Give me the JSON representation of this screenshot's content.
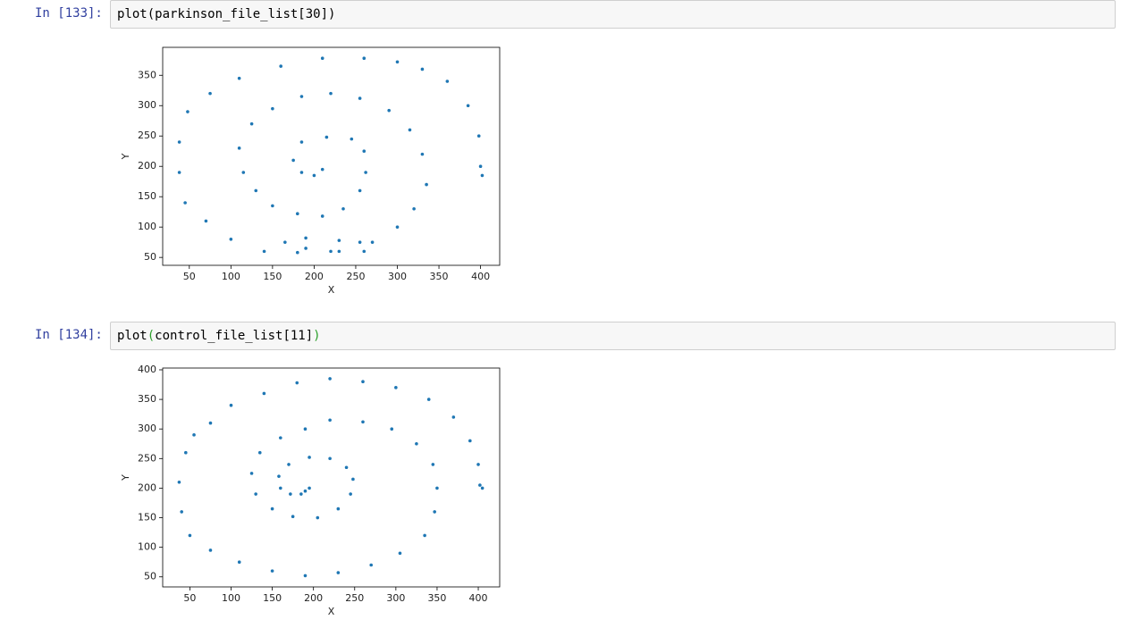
{
  "cells": [
    {
      "prompt": "In [133]:",
      "code": [
        "plot",
        "(",
        "parkinson_file_list[30]",
        ")"
      ]
    },
    {
      "prompt": "In [134]:",
      "code": [
        "plot",
        "(",
        "control_file_list[11]",
        ")"
      ]
    }
  ],
  "chart_data": [
    {
      "type": "scatter",
      "x_label": "X",
      "y_label": "Y",
      "color": "#1f77b4",
      "xlim": [
        18,
        423
      ],
      "ylim": [
        37,
        396
      ],
      "xticks": [
        50,
        100,
        150,
        200,
        250,
        300,
        350,
        400
      ],
      "yticks": [
        50,
        100,
        150,
        200,
        250,
        300,
        350
      ],
      "x": [
        210,
        200,
        185,
        175,
        185,
        215,
        245,
        260,
        262,
        255,
        235,
        210,
        180,
        150,
        130,
        115,
        110,
        125,
        150,
        185,
        220,
        255,
        290,
        315,
        330,
        335,
        320,
        300,
        270,
        230,
        190,
        165,
        190,
        230,
        260,
        255,
        220,
        180,
        140,
        100,
        70,
        45,
        38,
        38,
        48,
        75,
        110,
        160,
        210,
        260,
        300,
        330,
        360,
        385,
        398,
        400,
        402
      ],
      "y": [
        195,
        185,
        190,
        210,
        240,
        248,
        245,
        225,
        190,
        160,
        130,
        118,
        122,
        135,
        160,
        190,
        230,
        270,
        295,
        315,
        320,
        312,
        292,
        260,
        220,
        170,
        130,
        100,
        75,
        78,
        82,
        75,
        65,
        60,
        60,
        75,
        60,
        58,
        60,
        80,
        110,
        140,
        190,
        240,
        290,
        320,
        345,
        365,
        378,
        378,
        372,
        360,
        340,
        300,
        250,
        200,
        185
      ]
    },
    {
      "type": "scatter",
      "x_label": "X",
      "y_label": "Y",
      "color": "#1f77b4",
      "xlim": [
        17,
        426
      ],
      "ylim": [
        33,
        403
      ],
      "xticks": [
        50,
        100,
        150,
        200,
        250,
        300,
        350,
        400
      ],
      "yticks": [
        50,
        100,
        150,
        200,
        250,
        300,
        350,
        400
      ],
      "x": [
        195,
        190,
        185,
        172,
        160,
        158,
        170,
        195,
        220,
        240,
        248,
        245,
        230,
        205,
        175,
        150,
        130,
        125,
        135,
        160,
        190,
        220,
        260,
        295,
        325,
        345,
        350,
        347,
        335,
        305,
        270,
        230,
        190,
        150,
        110,
        75,
        50,
        40,
        37,
        45,
        55,
        75,
        100,
        140,
        180,
        220,
        260,
        300,
        340,
        370,
        390,
        400,
        402,
        405
      ],
      "y": [
        200,
        195,
        190,
        190,
        200,
        220,
        240,
        252,
        250,
        235,
        215,
        190,
        165,
        150,
        152,
        165,
        190,
        225,
        260,
        285,
        300,
        315,
        312,
        300,
        275,
        240,
        200,
        160,
        120,
        90,
        70,
        57,
        52,
        60,
        75,
        95,
        120,
        160,
        210,
        260,
        290,
        310,
        340,
        360,
        378,
        385,
        380,
        370,
        350,
        320,
        280,
        240,
        205,
        200
      ]
    }
  ]
}
